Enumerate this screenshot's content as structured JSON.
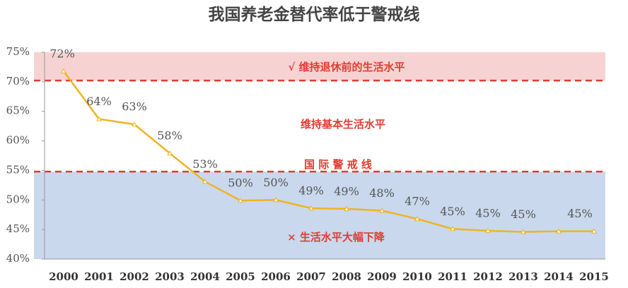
{
  "chart_data": {
    "type": "line",
    "title": "我国养老金替代率低于警戒线",
    "categories": [
      "2000",
      "2001",
      "2002",
      "2003",
      "2004",
      "2005",
      "2006",
      "2007",
      "2008",
      "2009",
      "2010",
      "2011",
      "2012",
      "2013",
      "2014",
      "2015"
    ],
    "series": [
      {
        "color": "#f0b323",
        "values": [
          71.8,
          63.7,
          62.8,
          57.9,
          53.1,
          49.9,
          50.0,
          48.6,
          48.5,
          48.2,
          46.8,
          45.1,
          44.8,
          44.6,
          44.7,
          44.7
        ],
        "value_labels": [
          "72%",
          "64%",
          "63%",
          "58%",
          "53%",
          "50%",
          "50%",
          "49%",
          "49%",
          "48%",
          "47%",
          "45%",
          "45%",
          "45%",
          null,
          "45%"
        ]
      }
    ],
    "ylim": [
      40,
      75
    ],
    "yticks": [
      {
        "value": 40,
        "label": "40%"
      },
      {
        "value": 45,
        "label": "45%"
      },
      {
        "value": 50,
        "label": "50%"
      },
      {
        "value": 55,
        "label": "55%"
      },
      {
        "value": 60,
        "label": "60%"
      },
      {
        "value": 65,
        "label": "65%"
      },
      {
        "value": 70,
        "label": "70%"
      },
      {
        "value": 75,
        "label": "75%"
      }
    ],
    "bands": [
      {
        "from": 70.2,
        "to": 75,
        "color": "#f6d2d2"
      },
      {
        "from": 40,
        "to": 54.8,
        "color": "#c9d8ec"
      }
    ],
    "reference_lines": [
      {
        "value": 70.2,
        "color": "#e03c31"
      },
      {
        "value": 54.8,
        "color": "#e03c31"
      }
    ],
    "annotations": [
      "√  维持退休前的生活水平",
      "维持基本生活水平",
      "国 际 警 戒 线",
      "× 生活水平大幅下降"
    ]
  }
}
